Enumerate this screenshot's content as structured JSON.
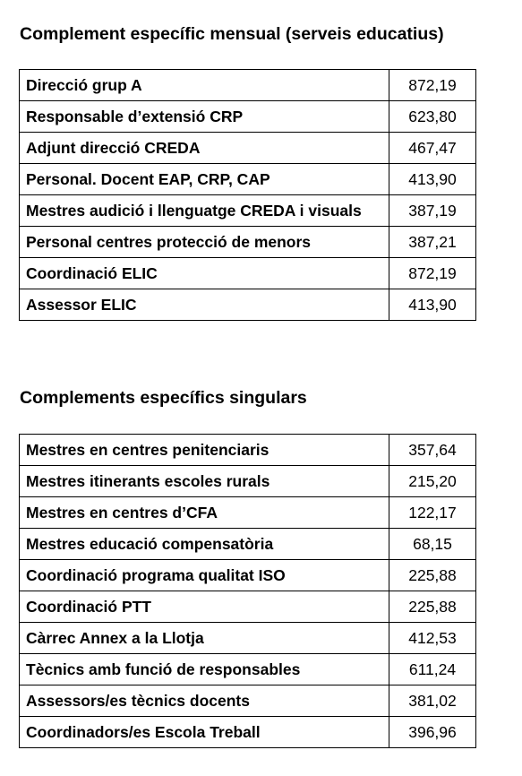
{
  "sections": [
    {
      "title": "Complement específic mensual (serveis educatius)",
      "rows": [
        [
          "Direcció grup A",
          "872,19"
        ],
        [
          "Responsable d’extensió CRP",
          "623,80"
        ],
        [
          "Adjunt direcció CREDA",
          "467,47"
        ],
        [
          "Personal. Docent EAP, CRP, CAP",
          "413,90"
        ],
        [
          "Mestres audició i llenguatge CREDA i visuals",
          "387,19"
        ],
        [
          "Personal centres protecció de menors",
          "387,21"
        ],
        [
          "Coordinació ELIC",
          "872,19"
        ],
        [
          "Assessor ELIC",
          "413,90"
        ]
      ]
    },
    {
      "title": "Complements específics singulars",
      "rows": [
        [
          "Mestres en centres penitenciaris",
          "357,64"
        ],
        [
          "Mestres itinerants escoles rurals",
          "215,20"
        ],
        [
          "Mestres en centres d’CFA",
          "122,17"
        ],
        [
          "Mestres educació compensatòria",
          "68,15"
        ],
        [
          "Coordinació programa qualitat ISO",
          "225,88"
        ],
        [
          "Coordinació PTT",
          "225,88"
        ],
        [
          "Càrrec Annex a la Llotja",
          "412,53"
        ],
        [
          "Tècnics amb funció de responsables",
          "611,24"
        ],
        [
          "Assessors/es tècnics docents",
          "381,02"
        ],
        [
          "Coordinadors/es Escola Treball",
          "396,96"
        ]
      ]
    }
  ]
}
